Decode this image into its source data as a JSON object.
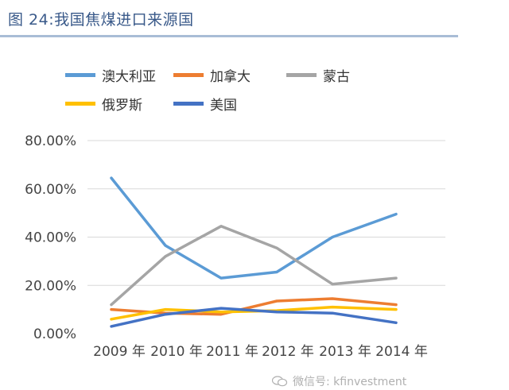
{
  "header": {
    "title": "图 24:我国焦煤进口来源国"
  },
  "watermark": {
    "text": "微信号: kfinvestment"
  },
  "chart_data": {
    "type": "line",
    "title": "",
    "xlabel": "",
    "ylabel": "",
    "categories": [
      "2009 年",
      "2010 年",
      "2011 年",
      "2012 年",
      "2013 年",
      "2014 年"
    ],
    "y_ticks": [
      "0.00%",
      "20.00%",
      "40.00%",
      "60.00%",
      "80.00%"
    ],
    "ylim": [
      0,
      80
    ],
    "legend_position": "top",
    "grid": true,
    "series": [
      {
        "name": "澳大利亚",
        "color": "#5b9bd5",
        "values": [
          64.5,
          36.5,
          23,
          25.5,
          40,
          49.5
        ]
      },
      {
        "name": "加拿大",
        "color": "#ed7d31",
        "values": [
          10,
          8.5,
          8,
          13.5,
          14.5,
          12
        ]
      },
      {
        "name": "蒙古",
        "color": "#a5a5a5",
        "values": [
          12,
          32,
          44.5,
          35.5,
          20.5,
          23
        ]
      },
      {
        "name": "俄罗斯",
        "color": "#ffc000",
        "values": [
          6,
          10,
          9,
          9.5,
          11,
          10
        ]
      },
      {
        "name": "美国",
        "color": "#4472c4",
        "values": [
          3,
          8,
          10.5,
          9,
          8.5,
          4.5
        ]
      }
    ]
  }
}
